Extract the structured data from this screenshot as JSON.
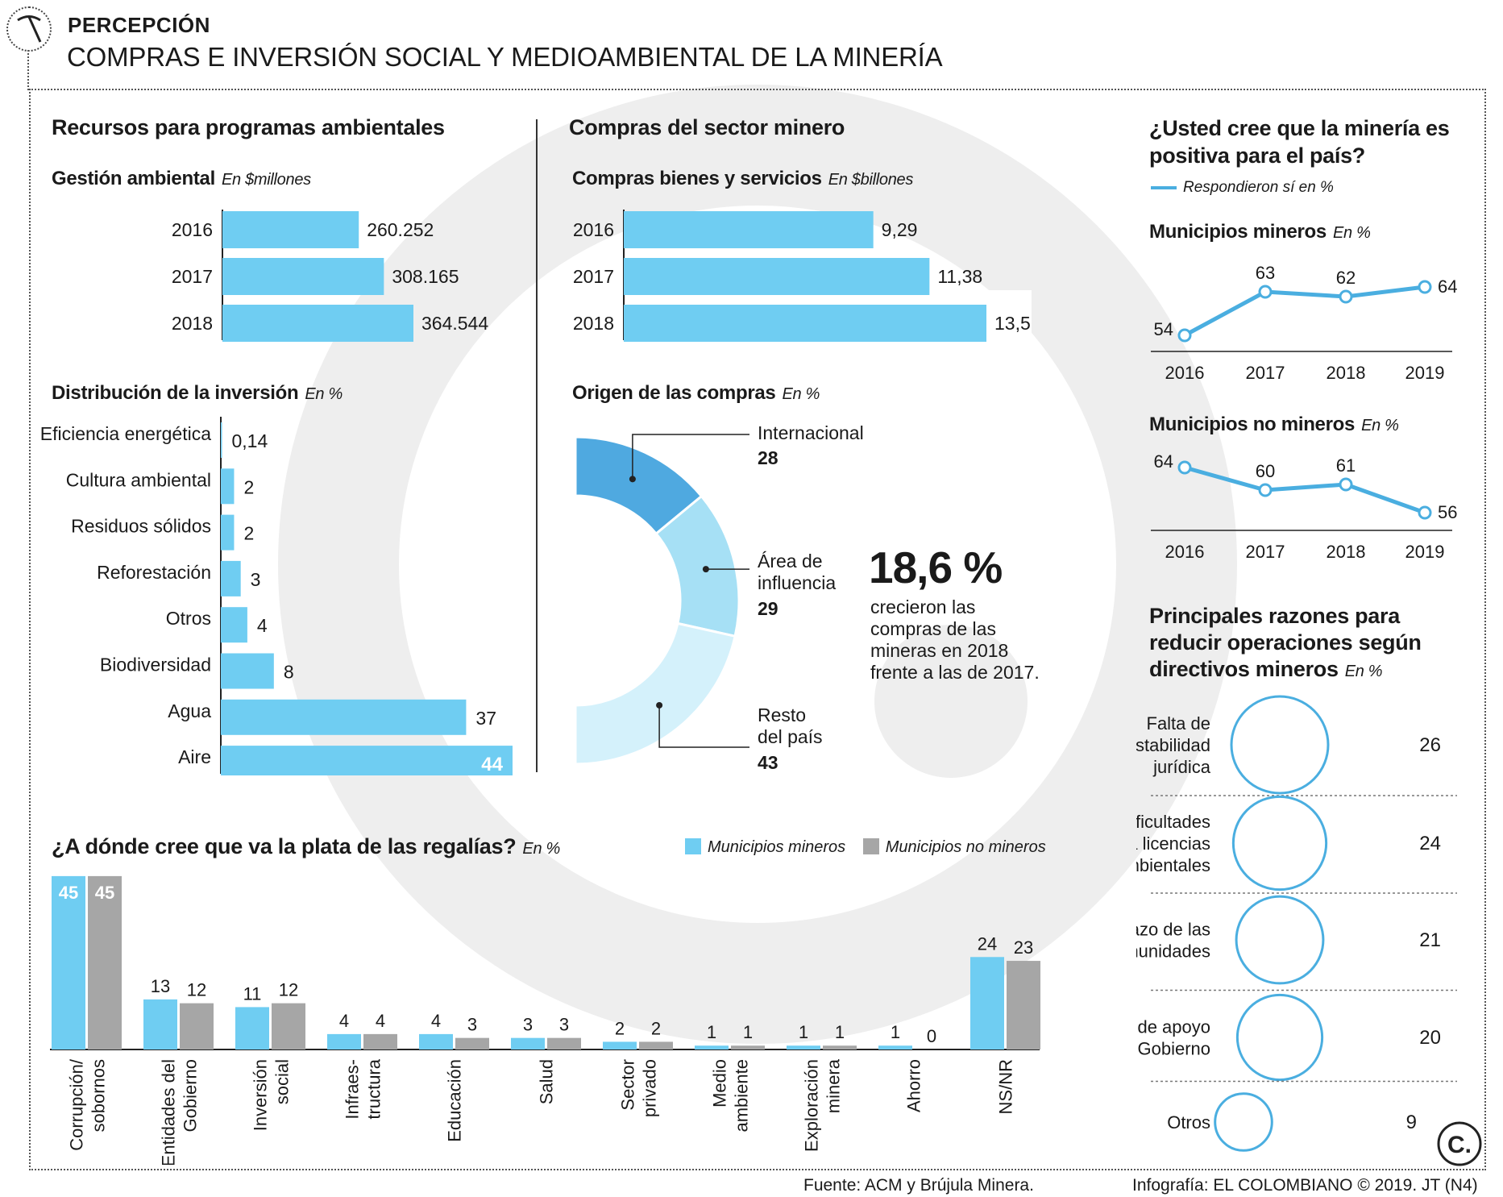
{
  "header": {
    "kicker": "PERCEPCIÓN",
    "title": "COMPRAS E INVERSIÓN SOCIAL Y MEDIOAMBIENTAL DE LA MINERÍA",
    "pick_icon": "pickaxe-icon"
  },
  "colors": {
    "blue": "#6fcdf2",
    "gray": "#a6a6a6",
    "donut_dark": "#4fa9e0",
    "donut_mid": "#a6e0f5",
    "donut_light": "#d4f1fb",
    "line": "#4aaee0",
    "watermark": "#eeeeee"
  },
  "recursos": {
    "title": "Recursos para programas ambientales"
  },
  "compras": {
    "title": "Compras del sector minero"
  },
  "chart_data": [
    {
      "id": "gestion",
      "type": "bar",
      "orientation": "horizontal",
      "title": "Gestión ambiental",
      "unit": "En $millones",
      "categories": [
        "2016",
        "2017",
        "2018"
      ],
      "values": [
        260252,
        308165,
        364544
      ],
      "value_labels": [
        "260.252",
        "308.165",
        "364.544"
      ]
    },
    {
      "id": "compras_bienes",
      "type": "bar",
      "orientation": "horizontal",
      "title": "Compras bienes y servicios",
      "unit": "En $billones",
      "categories": [
        "2016",
        "2017",
        "2018"
      ],
      "values": [
        9.29,
        11.38,
        13.5
      ],
      "value_labels": [
        "9,29",
        "11,38",
        "13,5"
      ]
    },
    {
      "id": "distribucion",
      "type": "bar",
      "orientation": "horizontal",
      "title": "Distribución de la inversión",
      "unit": "En %",
      "categories": [
        "Eficiencia energética",
        "Cultura ambiental",
        "Residuos sólidos",
        "Reforestación",
        "Otros",
        "Biodiversidad",
        "Agua",
        "Aire"
      ],
      "values": [
        0.14,
        2,
        2,
        3,
        4,
        8,
        37,
        44
      ],
      "value_labels": [
        "0,14",
        "2",
        "2",
        "3",
        "4",
        "8",
        "37",
        "44"
      ]
    },
    {
      "id": "origen",
      "type": "pie",
      "style": "half-donut",
      "title": "Origen de las compras",
      "unit": "En %",
      "slices": [
        {
          "label": "Internacional",
          "value": 28
        },
        {
          "label": "Área de influencia",
          "value": 29
        },
        {
          "label": "Resto del país",
          "value": 43
        }
      ]
    },
    {
      "id": "mun_mineros",
      "type": "line",
      "title": "Municipios mineros",
      "unit": "En %",
      "x": [
        "2016",
        "2017",
        "2018",
        "2019"
      ],
      "y": [
        54,
        63,
        62,
        64
      ]
    },
    {
      "id": "mun_no_mineros",
      "type": "line",
      "title": "Municipios no mineros",
      "unit": "En %",
      "x": [
        "2016",
        "2017",
        "2018",
        "2019"
      ],
      "y": [
        64,
        60,
        61,
        56
      ]
    },
    {
      "id": "razones",
      "type": "bubble",
      "title": "Principales razones para reducir operaciones según directivos mineros",
      "unit": "En %",
      "categories": [
        "Falta de estabilidad jurídica",
        "Dificultades para licencias ambientales",
        "Rechazo de las comunidades",
        "Falta de apoyo del Gobierno",
        "Otros"
      ],
      "values": [
        26,
        24,
        21,
        20,
        9
      ]
    },
    {
      "id": "regalias",
      "type": "bar",
      "orientation": "vertical",
      "title": "¿A dónde cree que va la plata de las regalías?",
      "unit": "En %",
      "categories": [
        "Corrupción/ sobornos",
        "Entidades del Gobierno",
        "Inversión social",
        "Infraes- tructura",
        "Educación",
        "Salud",
        "Sector privado",
        "Medio ambiente",
        "Exploración minera",
        "Ahorro",
        "NS/NR"
      ],
      "series": [
        {
          "name": "Municipios mineros",
          "values": [
            45,
            13,
            11,
            4,
            4,
            3,
            2,
            1,
            1,
            1,
            24
          ]
        },
        {
          "name": "Municipios no mineros",
          "values": [
            45,
            12,
            12,
            4,
            3,
            3,
            2,
            1,
            1,
            0,
            23
          ]
        }
      ]
    }
  ],
  "stat": {
    "big": "18,6 %",
    "lines": [
      "crecieron las",
      "compras de las",
      "mineras en 2018",
      "frente a las de 2017."
    ]
  },
  "pregunta": {
    "title_lines": [
      "¿Usted cree que la minería es",
      "positiva para el país?"
    ],
    "legend": "Respondieron sí en %"
  },
  "razones_title_lines": [
    "Principales razones para",
    "reducir operaciones según",
    "directivos mineros"
  ],
  "razones_label_lines": [
    [
      "Falta de",
      "estabilidad",
      "jurídica"
    ],
    [
      "Dificultades",
      "para licencias",
      "ambientales"
    ],
    [
      "Rechazo de las",
      "comunidades"
    ],
    [
      "Falta de apoyo",
      "del Gobierno"
    ],
    [
      "Otros"
    ]
  ],
  "regalias_labels": [
    [
      "Corrupción/",
      "sobornos"
    ],
    [
      "Entidades del",
      "Gobierno"
    ],
    [
      "Inversión",
      "social"
    ],
    [
      "Infraes-",
      "tructura"
    ],
    [
      "Educación"
    ],
    [
      "Salud"
    ],
    [
      "Sector",
      "privado"
    ],
    [
      "Medio",
      "ambiente"
    ],
    [
      "Exploración",
      "minera"
    ],
    [
      "Ahorro"
    ],
    [
      "NS/NR"
    ]
  ],
  "donut_labels": [
    [
      "Área de",
      "influencia"
    ],
    [
      "Resto",
      "del país"
    ]
  ],
  "footer": {
    "source": "Fuente: ACM y Brújula Minera.",
    "credit": "Infografía: EL COLOMBIANO © 2019. JT (N4)",
    "logo_letter": "C."
  }
}
